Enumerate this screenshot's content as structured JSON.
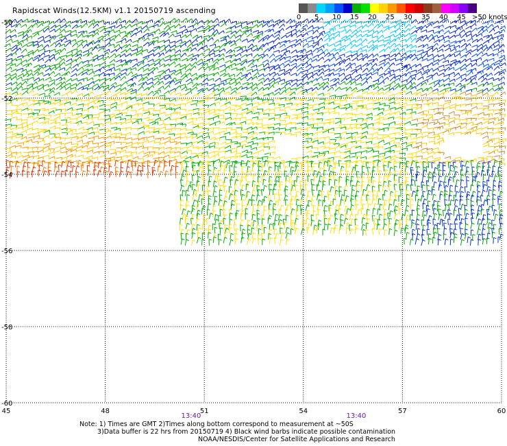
{
  "title": "Rapidscat Winds(12.5KM) v1.1 20150719 ascending",
  "colorbar": {
    "colors": [
      "#555555",
      "#8a8a8a",
      "#00d4ff",
      "#00a0ff",
      "#0050ff",
      "#0000cc",
      "#00b000",
      "#00e000",
      "#ffff00",
      "#ffd400",
      "#ff9900",
      "#ff5500",
      "#ff0000",
      "#cc0000",
      "#8b3a1f",
      "#a06040",
      "#ff00ff",
      "#d000ff",
      "#8800ff",
      "#4b0082"
    ],
    "labels": [
      "0",
      "5",
      "10",
      "15",
      "20",
      "25",
      "30",
      "35",
      "40",
      "45",
      ">50 knots"
    ]
  },
  "map": {
    "lon_ticks": [
      "45",
      "48",
      "51",
      "54",
      "57",
      "60"
    ],
    "lat_ticks": [
      "-50",
      "-52",
      "-54",
      "-56",
      "-58",
      "-60"
    ],
    "lon_range": [
      45,
      60
    ],
    "lat_range": [
      -50,
      -60
    ],
    "time_labels": [
      {
        "lon": 50.6,
        "text": "13:40"
      },
      {
        "lon": 55.6,
        "text": "13:40"
      }
    ]
  },
  "notes": {
    "line1": "Note: 1) Times are GMT 2)Times along bottom correspond to measurement at ~50S",
    "line2": "3)Data buffer is 22 hrs from 20150719 4) Black wind barbs indicate possible contamination",
    "line3": "NOAA/NESDIS/Center for Satellite Applications and Research"
  }
}
